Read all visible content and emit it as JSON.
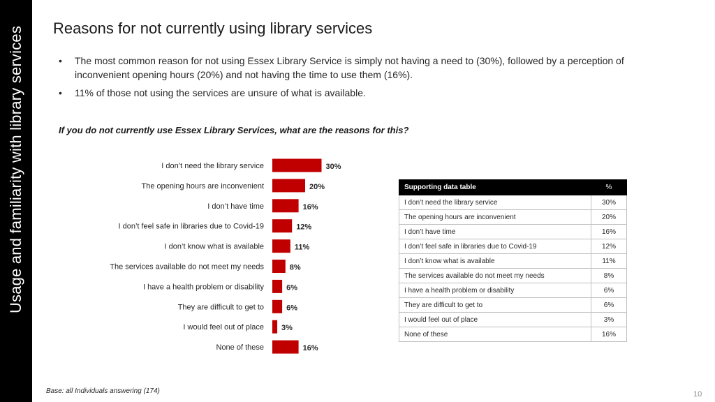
{
  "sidebar": {
    "label": "Usage and familiarity with library services"
  },
  "title": "Reasons for not currently using library services",
  "bullets": [
    "The most common reason for not using Essex Library Service is simply not having a need to (30%), followed by a perception of inconvenient opening hours (20%) and not having the time to use them (16%).",
    "11% of those not using the services are unsure of what is available."
  ],
  "bullet_symbol": "•",
  "question": "If you do not currently use Essex Library Services, what are the reasons for this?",
  "chart_data": {
    "type": "bar",
    "orientation": "horizontal",
    "categories": [
      "I don’t need the library service",
      "The opening hours are inconvenient",
      "I don’t have time",
      "I don’t feel safe in libraries due to Covid-19",
      "I don’t know what is available",
      "The services available do not meet my needs",
      "I have a health problem or disability",
      "They are difficult to get to",
      "I would feel out of place",
      "None of these"
    ],
    "values": [
      30,
      20,
      16,
      12,
      11,
      8,
      6,
      6,
      3,
      16
    ],
    "data_labels": [
      "30%",
      "20%",
      "16%",
      "12%",
      "11%",
      "8%",
      "6%",
      "6%",
      "3%",
      "16%"
    ],
    "bar_color": "#c00000",
    "grid": false,
    "legend": "none"
  },
  "table": {
    "header": "Supporting data table",
    "pct_header": "%",
    "rows": [
      {
        "label": "I don’t need the library service",
        "value": "30%"
      },
      {
        "label": "The opening hours are inconvenient",
        "value": "20%"
      },
      {
        "label": "I don’t have time",
        "value": "16%"
      },
      {
        "label": "I don’t feel safe in libraries due to Covid-19",
        "value": "12%"
      },
      {
        "label": "I don’t know what is available",
        "value": "11%"
      },
      {
        "label": "The services available do not meet my needs",
        "value": "8%"
      },
      {
        "label": "I have a health problem or disability",
        "value": "6%"
      },
      {
        "label": "They are difficult to get to",
        "value": "6%"
      },
      {
        "label": "I would feel out of place",
        "value": "3%"
      },
      {
        "label": "None of these",
        "value": "16%"
      }
    ]
  },
  "base_note": "Base: all Individuals answering (174)",
  "page_number": "10"
}
